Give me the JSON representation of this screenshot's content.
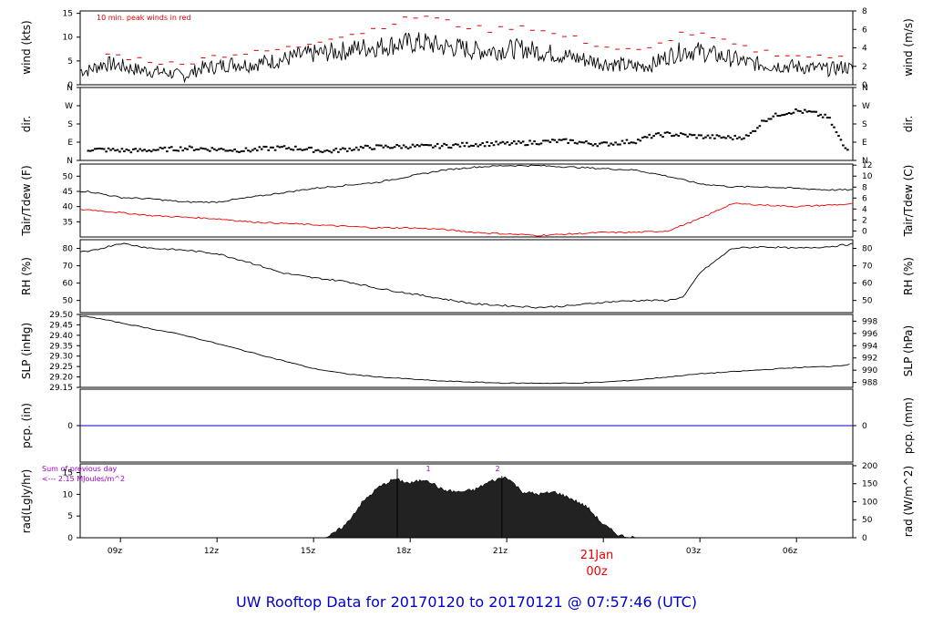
{
  "title": "UW Rooftop Data for 20170120  to  20170121 @ 07:57:46  (UTC)",
  "colors": {
    "axis": "#000000",
    "trace": "#000000",
    "peak": "#dd0000",
    "dewpoint": "#ee0000",
    "pcp": "#0000cc",
    "title": "#0000cc",
    "rad_note": "#9900cc",
    "date_label": "#ee0000"
  },
  "x_axis": {
    "ticks": [
      "09z",
      "12z",
      "15z",
      "18z",
      "21z",
      "03z",
      "06z"
    ],
    "date_label_top": "21Jan",
    "date_label_bottom": "00z"
  },
  "panels": {
    "wind": {
      "ylabel": "wind (kts)",
      "ylabel_right": "wind (m/s)",
      "note": "10 min. peak winds in red",
      "ticks_left": [
        "0",
        "5",
        "10",
        "15"
      ],
      "ticks_right": [
        "0",
        "2",
        "4",
        "6",
        "8"
      ]
    },
    "dir": {
      "ylabel": "dir.",
      "ylabel_right": "dir.",
      "ticks_left": [
        "N",
        "E",
        "S",
        "W",
        "N"
      ],
      "ticks_right": [
        "N",
        "E",
        "S",
        "W",
        "N"
      ]
    },
    "temp": {
      "ylabel": "Tair/Tdew (F)",
      "ylabel_right": "Tair/Tdew (C)",
      "ticks_left": [
        "35",
        "40",
        "45",
        "50"
      ],
      "ticks_right": [
        "0",
        "2",
        "4",
        "6",
        "8",
        "10",
        "12"
      ]
    },
    "rh": {
      "ylabel": "RH (%)",
      "ylabel_right": "RH (%)",
      "ticks_left": [
        "50",
        "60",
        "70",
        "80"
      ],
      "ticks_right": [
        "50",
        "60",
        "70",
        "80"
      ]
    },
    "slp": {
      "ylabel": "SLP (inHg)",
      "ylabel_right": "SLP (hPa)",
      "ticks_left": [
        "29.15",
        "29.20",
        "29.25",
        "29.30",
        "29.35",
        "29.40",
        "29.45",
        "29.50"
      ],
      "ticks_right": [
        "988",
        "990",
        "992",
        "994",
        "996",
        "998"
      ]
    },
    "pcp": {
      "ylabel": "pcp. (in)",
      "ylabel_right": "pcp. (mm)",
      "ticks_left": [
        "0"
      ],
      "ticks_right": [
        "0"
      ]
    },
    "rad": {
      "ylabel": "rad(Lgly/hr)",
      "ylabel_right": "rad (W/m^2)",
      "note_line1": "Sum of previous day",
      "note_line2": "<--- 2.15 MJoules/m^2",
      "ticks_left": [
        "0",
        "5",
        "10",
        "15"
      ],
      "ticks_right": [
        "0",
        "50",
        "100",
        "150",
        "200"
      ],
      "markers": [
        "1",
        "2"
      ]
    }
  },
  "chart_data": [
    {
      "type": "line",
      "title": "",
      "xlabel": "",
      "ylabel": "wind (kts)",
      "ylim": [
        0,
        15.5
      ],
      "x": [
        8,
        8.5,
        9,
        9.5,
        10,
        10.5,
        11,
        11.5,
        12,
        12.5,
        13,
        13.5,
        14,
        14.5,
        15,
        15.5,
        16,
        16.5,
        17,
        17.5,
        18,
        18.5,
        19,
        19.5,
        20,
        20.5,
        21,
        21.5,
        22,
        22.5,
        23,
        23.5,
        24,
        24.5,
        25,
        25.5,
        26,
        26.5,
        27,
        27.5,
        28,
        28.5,
        29,
        29.5,
        30,
        30.5,
        31,
        31.5,
        32
      ],
      "series": [
        {
          "name": "wind",
          "values": [
            3,
            4.5,
            4,
            3.2,
            2.8,
            2.5,
            1.8,
            3.5,
            3.8,
            4.5,
            4.2,
            4.8,
            5.2,
            6,
            6.5,
            6.8,
            7.2,
            7.8,
            8,
            8.5,
            8.8,
            8.8,
            8,
            7.8,
            7.2,
            7.2,
            7.4,
            7.6,
            7,
            6.5,
            5.8,
            5.2,
            4.6,
            4.2,
            3.8,
            4.2,
            6,
            7.2,
            7,
            6.2,
            5.5,
            4.6,
            4.2,
            4,
            3.8,
            3.5,
            3.2,
            3.8,
            2.6
          ]
        },
        {
          "name": "10 min. peak winds",
          "values": [
            5,
            6.5,
            6,
            5.5,
            5,
            4.5,
            4,
            6,
            6,
            6.5,
            6.5,
            7,
            7.5,
            8,
            9,
            10,
            10.5,
            11,
            12,
            13,
            14,
            14.5,
            13.5,
            12.5,
            12,
            11.5,
            12,
            12.5,
            11.5,
            10.5,
            10,
            9,
            8,
            7.5,
            7,
            7.5,
            9.5,
            11,
            10.5,
            9.5,
            8.5,
            7.5,
            7,
            6.5,
            6,
            6,
            5.5,
            6.5,
            5.5
          ]
        }
      ]
    },
    {
      "type": "scatter",
      "title": "",
      "xlabel": "",
      "ylabel": "dir.",
      "ylim": [
        0,
        360
      ],
      "x": [
        8,
        8.5,
        9,
        9.5,
        10,
        10.5,
        11,
        11.5,
        12,
        12.5,
        13,
        13.5,
        14,
        14.5,
        15,
        15.5,
        16,
        16.5,
        17,
        17.5,
        18,
        18.5,
        19,
        19.5,
        20,
        20.5,
        21,
        21.5,
        22,
        22.5,
        23,
        23.5,
        24,
        24.5,
        25,
        25.5,
        26,
        26.5,
        27,
        27.5,
        28,
        28.5,
        29,
        29.5,
        30,
        30.5,
        31,
        31.5,
        32
      ],
      "series": [
        {
          "name": "dir",
          "values": [
            55,
            52,
            50,
            48,
            52,
            55,
            60,
            58,
            55,
            52,
            50,
            58,
            62,
            60,
            52,
            45,
            55,
            62,
            66,
            68,
            70,
            68,
            72,
            75,
            80,
            82,
            82,
            85,
            90,
            95,
            95,
            85,
            80,
            88,
            95,
            120,
            130,
            125,
            118,
            115,
            112,
            118,
            200,
            230,
            245,
            235,
            210,
            60,
            70
          ]
        }
      ]
    },
    {
      "type": "line",
      "title": "",
      "xlabel": "",
      "ylabel": "Tair/Tdew (F)",
      "ylim": [
        30,
        54
      ],
      "x": [
        8,
        9,
        10,
        11,
        12,
        13,
        14,
        15,
        16,
        17,
        18,
        19,
        20,
        21,
        22,
        23,
        24,
        25,
        26,
        27,
        28,
        29,
        30,
        31,
        32
      ],
      "series": [
        {
          "name": "Tair",
          "values": [
            45,
            43,
            42.5,
            41.5,
            41.5,
            43,
            44.5,
            46,
            47,
            48,
            50,
            52,
            53,
            53.5,
            53.5,
            53,
            52.5,
            52,
            50,
            47.5,
            46.5,
            46.5,
            46,
            45.5,
            45.5
          ]
        },
        {
          "name": "Tdew",
          "values": [
            39,
            38,
            37,
            36.5,
            36,
            35,
            34.5,
            34,
            33.5,
            33,
            33,
            32.5,
            31.5,
            31,
            30.5,
            31,
            31.5,
            31.5,
            32,
            36,
            41,
            40.5,
            40,
            40.5,
            41
          ]
        }
      ]
    },
    {
      "type": "line",
      "title": "",
      "xlabel": "",
      "ylabel": "RH (%)",
      "ylim": [
        43,
        85
      ],
      "x": [
        8,
        9,
        10,
        11,
        12,
        13,
        14,
        15,
        16,
        17,
        18,
        19,
        20,
        21,
        22,
        23,
        24,
        25,
        26,
        26.5,
        27,
        28,
        29,
        30,
        31,
        32
      ],
      "series": [
        {
          "name": "RH",
          "values": [
            78,
            83,
            80,
            79,
            77,
            72,
            66,
            63,
            61,
            57,
            54,
            51,
            48,
            47,
            46,
            47,
            49,
            50,
            50,
            52,
            66,
            80,
            81,
            80,
            81,
            83
          ]
        }
      ]
    },
    {
      "type": "line",
      "title": "",
      "xlabel": "",
      "ylabel": "SLP (inHg)",
      "ylim": [
        29.15,
        29.5
      ],
      "x": [
        8,
        9,
        10,
        11,
        12,
        13,
        14,
        15,
        16,
        17,
        18,
        19,
        20,
        21,
        22,
        23,
        24,
        25,
        26,
        27,
        28,
        29,
        30,
        31,
        32
      ],
      "series": [
        {
          "name": "SLP",
          "values": [
            29.49,
            29.46,
            29.43,
            29.4,
            29.36,
            29.32,
            29.28,
            29.24,
            29.215,
            29.2,
            29.19,
            29.18,
            29.175,
            29.17,
            29.17,
            29.17,
            29.175,
            29.185,
            29.2,
            29.215,
            29.225,
            29.235,
            29.245,
            29.25,
            29.265
          ]
        }
      ]
    },
    {
      "type": "line",
      "title": "",
      "xlabel": "",
      "ylabel": "pcp. (in)",
      "ylim": [
        -0.5,
        0.5
      ],
      "x": [
        8,
        32
      ],
      "series": [
        {
          "name": "pcp",
          "values": [
            0,
            0
          ]
        }
      ]
    },
    {
      "type": "area",
      "title": "",
      "xlabel": "",
      "ylabel": "rad(Lgly/hr)",
      "ylim": [
        0,
        17
      ],
      "x": [
        15.2,
        15.5,
        16,
        16.5,
        17,
        17.5,
        18,
        18.5,
        19,
        19.5,
        20,
        20.5,
        21,
        21.5,
        22,
        22.5,
        23,
        23.5,
        24,
        24.5,
        25
      ],
      "series": [
        {
          "name": "rad",
          "values": [
            0,
            0.3,
            3,
            8,
            11.5,
            13.5,
            12.5,
            13.5,
            11,
            10.5,
            11,
            13,
            14,
            10.5,
            10,
            10.5,
            9,
            7,
            3,
            0.5,
            0
          ]
        }
      ]
    }
  ]
}
